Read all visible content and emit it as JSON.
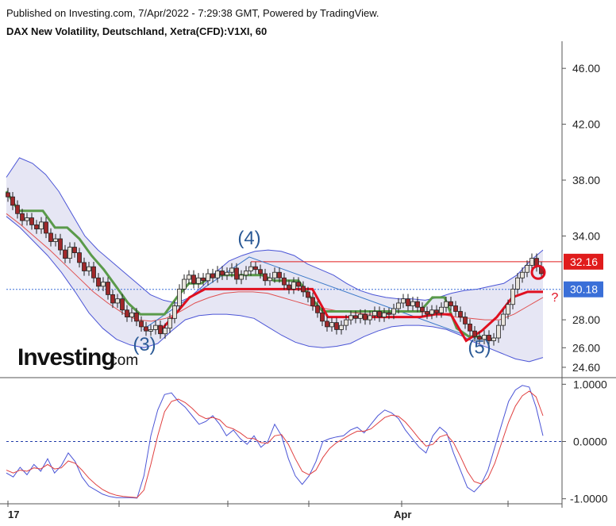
{
  "header": {
    "published": "Published on Investing.com, 7/Apr/2022 - 7:29:38 GMT, Powered by TradingView.",
    "symbol": "DAX New Volatility, Deutschland, Xetra(CFD):V1XI, 60"
  },
  "logo": {
    "main": "Investing",
    "suffix": ".com"
  },
  "colors": {
    "candle_up": "#e8e4dc",
    "candle_down": "#a0282a",
    "candle_outline": "#222222",
    "band_fill": "#dcdcf0",
    "band_line": "#4b55d6",
    "mid_line": "#e05050",
    "green_line": "#5a9a4a",
    "red_stop": "#e01020",
    "trend_line": "#3a78c8",
    "osc_blue": "#4b55d6",
    "osc_red": "#e04040",
    "price_tag": "#3a6fd8",
    "level_tag": "#e01c1c"
  },
  "chart_data": [
    {
      "type": "candlestick",
      "title": "DAX New Volatility, Deutschland, Xetra(CFD):V1XI, 60",
      "ylim": [
        24.2,
        47.6
      ],
      "y_ticks": [
        "46.00",
        "42.00",
        "38.00",
        "34.00",
        "32.16",
        "30.18",
        "28.00",
        "26.00",
        "24.60"
      ],
      "x_ticks": [
        "17",
        "Apr"
      ],
      "close_series": [
        36.8,
        36.2,
        35.6,
        35.1,
        35.3,
        34.8,
        34.5,
        35.0,
        34.2,
        33.6,
        33.8,
        33.0,
        32.4,
        33.2,
        32.8,
        32.1,
        31.5,
        31.8,
        31.0,
        30.4,
        30.7,
        29.8,
        29.2,
        29.5,
        28.7,
        28.2,
        28.5,
        27.9,
        27.5,
        27.2,
        27.3,
        27.6,
        27.0,
        27.4,
        28.1,
        29.0,
        30.2,
        30.9,
        31.2,
        30.6,
        31.0,
        30.8,
        31.3,
        31.0,
        31.5,
        31.2,
        31.4,
        31.7,
        30.9,
        31.2,
        31.5,
        31.8,
        31.6,
        31.3,
        30.8,
        31.0,
        31.4,
        31.0,
        30.5,
        30.2,
        30.7,
        30.4,
        30.0,
        29.6,
        29.0,
        28.5,
        27.9,
        27.5,
        27.8,
        27.3,
        27.6,
        28.0,
        28.3,
        28.1,
        28.4,
        28.0,
        28.3,
        28.6,
        28.2,
        28.5,
        28.4,
        28.8,
        29.2,
        29.5,
        29.0,
        29.3,
        28.9,
        28.6,
        28.4,
        28.7,
        28.5,
        28.9,
        29.3,
        29.0,
        28.6,
        28.2,
        27.7,
        27.2,
        26.8,
        26.6,
        26.9,
        26.5,
        26.7,
        27.6,
        28.4,
        29.1,
        30.2,
        31.0,
        31.4,
        31.9,
        32.4,
        31.8,
        31.3
      ],
      "bollinger_upper": [
        38.2,
        39.6,
        39.2,
        38.4,
        37.2,
        35.6,
        34.0,
        33.0,
        32.2,
        31.4,
        30.6,
        29.8,
        29.4,
        29.2,
        29.6,
        30.4,
        31.4,
        32.2,
        32.6,
        32.9,
        33.0,
        32.9,
        32.6,
        32.0,
        31.6,
        31.2,
        30.6,
        30.1,
        29.8,
        29.6,
        29.5,
        29.5,
        29.4,
        29.6,
        29.9,
        30.1,
        30.2,
        30.4,
        30.6,
        31.2,
        32.2,
        33.0
      ],
      "bollinger_lower": [
        35.4,
        34.6,
        33.6,
        32.6,
        31.4,
        30.0,
        28.5,
        27.4,
        26.6,
        26.2,
        26.0,
        26.3,
        27.2,
        28.0,
        28.3,
        28.4,
        28.4,
        28.3,
        28.1,
        27.5,
        26.9,
        26.4,
        26.1,
        26.0,
        26.1,
        26.3,
        26.8,
        27.2,
        27.5,
        27.6,
        27.6,
        27.5,
        27.3,
        26.9,
        26.4,
        26.0,
        25.6,
        25.2,
        25.0,
        25.3
      ],
      "mid_line": [
        35.6,
        34.8,
        33.9,
        33.0,
        32.0,
        31.0,
        30.0,
        29.2,
        28.5,
        28.0,
        27.9,
        28.1,
        28.6,
        29.2,
        29.6,
        29.9,
        30.0,
        30.0,
        29.9,
        29.6,
        29.3,
        29.0,
        28.8,
        28.6,
        28.5,
        28.4,
        28.5,
        28.6,
        28.6,
        28.5,
        28.4,
        28.2,
        28.1,
        28.0,
        28.0,
        28.4,
        29.0,
        29.6
      ],
      "green_line": [
        37.2,
        35.8,
        35.8,
        35.8,
        34.6,
        34.6,
        33.8,
        32.6,
        31.6,
        30.4,
        29.2,
        28.4,
        28.4,
        28.4,
        29.6,
        30.6,
        30.6,
        31.2,
        31.2,
        31.2,
        31.2,
        31.2,
        30.8,
        30.8,
        30.8,
        29.6,
        28.6,
        28.6,
        28.6,
        28.6,
        28.6,
        28.6,
        28.6,
        28.6,
        28.6,
        29.6,
        29.6,
        27.4,
        26.8,
        26.8
      ],
      "red_stop_line": [
        27.1,
        28.3,
        29.6,
        30.2,
        30.2,
        30.2,
        30.2,
        30.2,
        30.2,
        30.2,
        30.2,
        28.2,
        28.2,
        28.2,
        28.2,
        28.2,
        28.2,
        28.2,
        28.4,
        28.4,
        26.5,
        27.2,
        28.2,
        29.6,
        30.0,
        30.0
      ],
      "levels": [
        {
          "value": 32.16,
          "label": "32.16"
        },
        {
          "value": 30.18,
          "label": "30.18"
        }
      ],
      "wave_labels": [
        "(3)",
        "(4)",
        "(5)",
        "?"
      ]
    },
    {
      "type": "line",
      "ylim": [
        -1.06,
        1.06
      ],
      "y_ticks": [
        "1.0000",
        "0.0000",
        "-1.0000"
      ],
      "series": [
        {
          "values": [
            -0.55,
            -0.62,
            -0.45,
            -0.58,
            -0.4,
            -0.52,
            -0.3,
            -0.55,
            -0.42,
            -0.2,
            -0.35,
            -0.62,
            -0.78,
            -0.85,
            -0.92,
            -0.96,
            -0.98,
            -0.98,
            -0.98,
            -0.99,
            -0.6,
            0.1,
            0.55,
            0.82,
            0.85,
            0.7,
            0.6,
            0.45,
            0.3,
            0.35,
            0.45,
            0.3,
            0.1,
            0.2,
            0.05,
            -0.05,
            0.1,
            -0.1,
            0.0,
            0.3,
            0.1,
            -0.3,
            -0.6,
            -0.75,
            -0.6,
            -0.35,
            0.0,
            0.05,
            0.08,
            0.1,
            0.2,
            0.25,
            0.15,
            0.3,
            0.45,
            0.55,
            0.5,
            0.4,
            0.2,
            0.05,
            -0.1,
            -0.2,
            0.1,
            0.25,
            0.15,
            -0.2,
            -0.5,
            -0.8,
            -0.88,
            -0.75,
            -0.5,
            -0.1,
            0.3,
            0.7,
            0.9,
            0.98,
            0.95,
            0.6,
            0.1
          ]
        },
        {
          "values": [
            -0.5,
            -0.55,
            -0.5,
            -0.52,
            -0.46,
            -0.48,
            -0.4,
            -0.48,
            -0.46,
            -0.34,
            -0.38,
            -0.5,
            -0.64,
            -0.75,
            -0.84,
            -0.9,
            -0.94,
            -0.96,
            -0.97,
            -0.98,
            -0.85,
            -0.4,
            0.1,
            0.52,
            0.7,
            0.74,
            0.68,
            0.58,
            0.46,
            0.4,
            0.42,
            0.38,
            0.26,
            0.22,
            0.15,
            0.06,
            0.05,
            -0.02,
            -0.03,
            0.1,
            0.12,
            -0.05,
            -0.3,
            -0.52,
            -0.58,
            -0.5,
            -0.28,
            -0.12,
            -0.02,
            0.05,
            0.12,
            0.18,
            0.18,
            0.22,
            0.32,
            0.42,
            0.46,
            0.44,
            0.34,
            0.2,
            0.05,
            -0.08,
            -0.05,
            0.08,
            0.12,
            -0.02,
            -0.26,
            -0.52,
            -0.7,
            -0.74,
            -0.64,
            -0.38,
            -0.02,
            0.34,
            0.62,
            0.8,
            0.88,
            0.78,
            0.45
          ]
        }
      ]
    }
  ]
}
